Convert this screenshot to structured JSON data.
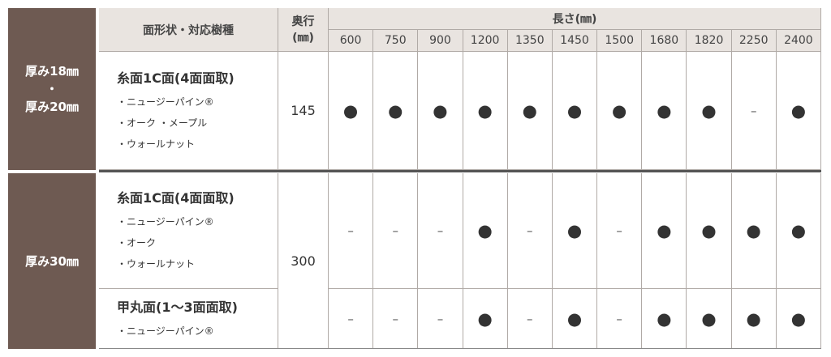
{
  "header": {
    "type_label": "面形状・対応樹種",
    "depth_label": [
      "奥行",
      "(㎜)"
    ],
    "length_label": "長さ(㎜)",
    "lengths": [
      600,
      750,
      900,
      1200,
      1350,
      1450,
      1500,
      1680,
      1820,
      2250,
      2400
    ]
  },
  "groups": [
    {
      "thickness": [
        "厚み18㎜",
        "・",
        "厚み20㎜"
      ],
      "depth": 145,
      "rows": [
        {
          "title": "糸面1C面(4面面取)",
          "species": [
            "・ニュージーパイン®",
            "・オーク ・メープル",
            "・ウォールナット"
          ],
          "cells": [
            "●",
            "●",
            "●",
            "●",
            "●",
            "●",
            "●",
            "●",
            "●",
            "–",
            "●"
          ]
        }
      ]
    },
    {
      "thickness": [
        "厚み30㎜"
      ],
      "depth": 300,
      "rows": [
        {
          "title": "糸面1C面(4面面取)",
          "species": [
            "・ニュージーパイン®",
            "・オーク",
            "・ウォールナット"
          ],
          "cells": [
            "–",
            "–",
            "–",
            "●",
            "–",
            "●",
            "–",
            "●",
            "●",
            "●",
            "●"
          ]
        },
        {
          "title": "甲丸面(1〜3面面取)",
          "species": [
            "・ニュージーパイン®"
          ],
          "cells": [
            "–",
            "–",
            "–",
            "●",
            "–",
            "●",
            "–",
            "●",
            "●",
            "●",
            "●"
          ]
        }
      ]
    }
  ]
}
